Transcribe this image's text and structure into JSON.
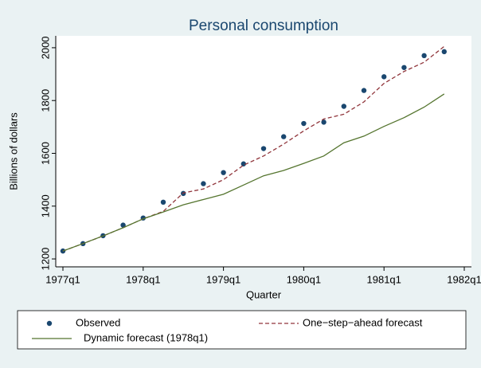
{
  "chart_data": {
    "type": "line",
    "title": "Personal consumption",
    "x_label": "Quarter",
    "y_label": "Billions of dollars",
    "x": [
      "1977q1",
      "1977q2",
      "1977q3",
      "1977q4",
      "1978q1",
      "1978q2",
      "1978q3",
      "1978q4",
      "1979q1",
      "1979q2",
      "1979q3",
      "1979q4",
      "1980q1",
      "1980q2",
      "1980q3",
      "1980q4",
      "1981q1",
      "1981q2",
      "1981q3",
      "1981q4"
    ],
    "xlim": [
      "1977q1",
      "1982q1"
    ],
    "xticks": [
      "1977q1",
      "1978q1",
      "1979q1",
      "1980q1",
      "1981q1",
      "1982q1"
    ],
    "ylim": [
      1170,
      2045
    ],
    "yticks": [
      1200,
      1400,
      1600,
      1800,
      2000
    ],
    "grid": false,
    "legend": "bottom",
    "series": [
      {
        "name": "Observed",
        "color": "#1a476f",
        "style": "markers",
        "values": [
          1230,
          1258,
          1288,
          1328,
          1355,
          1415,
          1448,
          1485,
          1527,
          1560,
          1618,
          1663,
          1713,
          1718,
          1778,
          1838,
          1890,
          1925,
          1970,
          1985
        ]
      },
      {
        "name": "One−step−ahead forecast",
        "color": "#90353b",
        "style": "line",
        "dash": true,
        "values": [
          1230,
          1258,
          1287,
          1318,
          1352,
          1380,
          1450,
          1465,
          1500,
          1555,
          1590,
          1635,
          1685,
          1730,
          1748,
          1795,
          1865,
          1910,
          1945,
          2005
        ]
      },
      {
        "name": "Dynamic forecast (1978q1)",
        "color": "#55752f",
        "style": "line",
        "dash": false,
        "values": [
          1230,
          1258,
          1287,
          1318,
          1352,
          1378,
          1405,
          1425,
          1445,
          1480,
          1515,
          1535,
          1562,
          1590,
          1640,
          1665,
          1702,
          1735,
          1775,
          1825
        ]
      }
    ]
  }
}
